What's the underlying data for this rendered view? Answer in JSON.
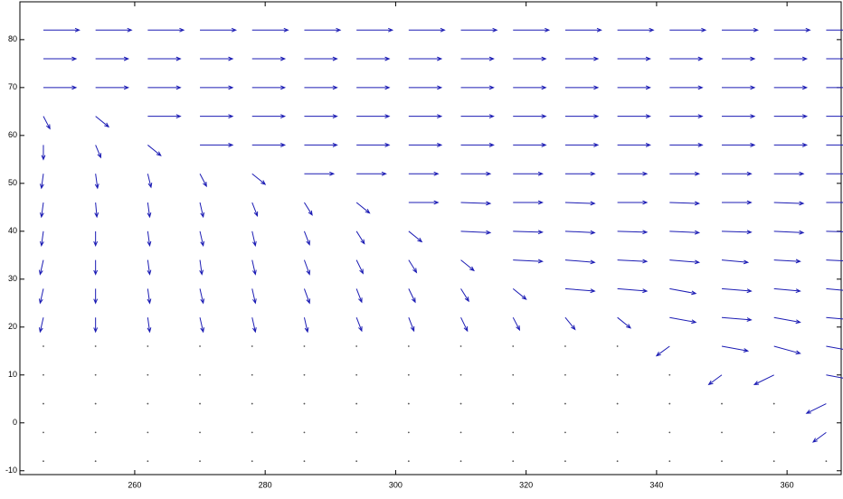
{
  "chart_data": {
    "type": "quiver",
    "color": "#1c1cb4",
    "zero_color": "#555555",
    "x": [
      246,
      254,
      262,
      270,
      278,
      286,
      294,
      302,
      310,
      318,
      326,
      334,
      342,
      350,
      358,
      366
    ],
    "y": [
      -8,
      -2,
      4,
      10,
      16,
      22,
      28,
      34,
      40,
      46,
      52,
      58,
      64,
      70,
      76,
      82
    ],
    "u": [
      [
        0,
        0,
        0,
        0,
        0,
        0,
        0,
        0,
        0,
        0,
        0,
        0,
        0,
        0,
        0,
        0
      ],
      [
        0,
        0,
        0,
        0,
        0,
        0,
        0,
        0,
        0,
        0,
        0,
        0,
        0,
        0,
        0,
        -2
      ],
      [
        0,
        0,
        0,
        0,
        0,
        0,
        0,
        0,
        0,
        0,
        0,
        0,
        0,
        0,
        0,
        -3
      ],
      [
        0,
        0,
        0,
        0,
        0,
        0,
        0,
        0,
        0,
        0,
        0,
        0,
        0,
        -2,
        -3,
        4
      ],
      [
        0,
        0,
        0,
        0,
        0,
        0,
        0,
        0,
        0,
        0,
        0,
        0,
        -2,
        4,
        4,
        4
      ],
      [
        -0.5,
        0,
        0.3,
        0.5,
        0.5,
        0.5,
        0.8,
        0.8,
        1,
        1,
        1.5,
        2,
        4,
        4.5,
        4,
        4
      ],
      [
        -0.5,
        0,
        0.3,
        0.5,
        0.5,
        0.8,
        0.8,
        1,
        1.2,
        2,
        4.5,
        4.5,
        4,
        4.5,
        4,
        4
      ],
      [
        -0.5,
        0,
        0.3,
        0.3,
        0.5,
        0.8,
        1,
        1.2,
        2,
        4.5,
        4.5,
        4.5,
        4.5,
        4,
        4,
        4.5
      ],
      [
        -0.3,
        0,
        0.3,
        0.5,
        0.5,
        0.8,
        1.2,
        2,
        4.5,
        4.5,
        4.5,
        4.5,
        4.5,
        4.5,
        4.5,
        4.5
      ],
      [
        -0.3,
        0.2,
        0.3,
        0.5,
        0.8,
        1.2,
        2,
        4.5,
        4.5,
        4.5,
        4.5,
        4.5,
        4.5,
        4.5,
        4.5,
        4.5
      ],
      [
        -0.3,
        0.3,
        0.5,
        1,
        2,
        4.5,
        4.5,
        4.5,
        4.5,
        4.5,
        4.5,
        4.5,
        4.5,
        4.5,
        4.5,
        4.5
      ],
      [
        0,
        0.8,
        2,
        5,
        5,
        5,
        5,
        5,
        5,
        5,
        5,
        5,
        5,
        5,
        5,
        5
      ],
      [
        1,
        2,
        5,
        5,
        5,
        5,
        5,
        5,
        5,
        5,
        5,
        5,
        5,
        5,
        5,
        5
      ],
      [
        5,
        5,
        5,
        5,
        5,
        5,
        5,
        5,
        5,
        5,
        5,
        5,
        5,
        5,
        5,
        5
      ],
      [
        5,
        5,
        5,
        5,
        5,
        5,
        5,
        5,
        5,
        5,
        5,
        5,
        5,
        5,
        5,
        5
      ],
      [
        5.5,
        5.5,
        5.5,
        5.5,
        5.5,
        5.5,
        5.5,
        5.5,
        5.5,
        5.5,
        5.5,
        5.5,
        5.5,
        5.5,
        5.5,
        5.5
      ]
    ],
    "v": [
      [
        0,
        0,
        0,
        0,
        0,
        0,
        0,
        0,
        0,
        0,
        0,
        0,
        0,
        0,
        0,
        0
      ],
      [
        0,
        0,
        0,
        0,
        0,
        0,
        0,
        0,
        0,
        0,
        0,
        0,
        0,
        0,
        0,
        -2
      ],
      [
        0,
        0,
        0,
        0,
        0,
        0,
        0,
        0,
        0,
        0,
        0,
        0,
        0,
        0,
        0,
        -2
      ],
      [
        0,
        0,
        0,
        0,
        0,
        0,
        0,
        0,
        0,
        0,
        0,
        0,
        0,
        -2,
        -2,
        -1
      ],
      [
        0,
        0,
        0,
        0,
        0,
        0,
        0,
        0,
        0,
        0,
        0,
        0,
        -2,
        -1,
        -1.5,
        -1
      ],
      [
        -3,
        -3,
        -3,
        -3,
        -3,
        -3,
        -2.8,
        -2.8,
        -2.8,
        -2.6,
        -2.5,
        -2.2,
        -1,
        -0.5,
        -1,
        -0.5
      ],
      [
        -3,
        -3,
        -3,
        -3,
        -3,
        -3,
        -2.8,
        -2.8,
        -2.6,
        -2.2,
        -0.5,
        -0.5,
        -1,
        -0.5,
        -0.5,
        -0.5
      ],
      [
        -3,
        -3,
        -3,
        -3,
        -3,
        -3,
        -2.8,
        -2.6,
        -2.2,
        -0.3,
        -0.5,
        -0.3,
        -0.5,
        -0.5,
        -0.3,
        -0.3
      ],
      [
        -3,
        -3,
        -3,
        -3,
        -3,
        -2.8,
        -2.6,
        -2.2,
        -0.3,
        -0.2,
        -0.3,
        -0.2,
        -0.3,
        -0.2,
        -0.3,
        -0.2
      ],
      [
        -3,
        -3,
        -3,
        -3,
        -2.8,
        -2.6,
        -2.2,
        0,
        -0.2,
        0,
        -0.2,
        0,
        -0.2,
        0,
        -0.2,
        0
      ],
      [
        -3,
        -3,
        -2.8,
        -2.6,
        -2.2,
        0,
        0,
        0,
        0,
        0,
        0,
        0,
        0,
        0,
        0,
        0
      ],
      [
        -3,
        -2.6,
        -2.2,
        0,
        0,
        0,
        0,
        0,
        0,
        0,
        0,
        0,
        0,
        0,
        0,
        0
      ],
      [
        -2.6,
        -2.2,
        0,
        0,
        0,
        0,
        0,
        0,
        0,
        0,
        0,
        0,
        0,
        0,
        0,
        0
      ],
      [
        0,
        0,
        0,
        0,
        0,
        0,
        0,
        0,
        0,
        0,
        0,
        0,
        0,
        0,
        0,
        0
      ],
      [
        0,
        0,
        0,
        0,
        0,
        0,
        0,
        0,
        0,
        0,
        0,
        0,
        0,
        0,
        0,
        0
      ],
      [
        0,
        0,
        0,
        0,
        0,
        0,
        0,
        0,
        0,
        0,
        0,
        0,
        0,
        0,
        0,
        0
      ]
    ],
    "xlim": [
      242.4,
      368.3
    ],
    "ylim": [
      -10.8,
      87.9
    ],
    "xticks": [
      260,
      280,
      300,
      320,
      340,
      360
    ],
    "yticks": [
      -10,
      0,
      10,
      20,
      30,
      40,
      50,
      60,
      70,
      80
    ]
  }
}
